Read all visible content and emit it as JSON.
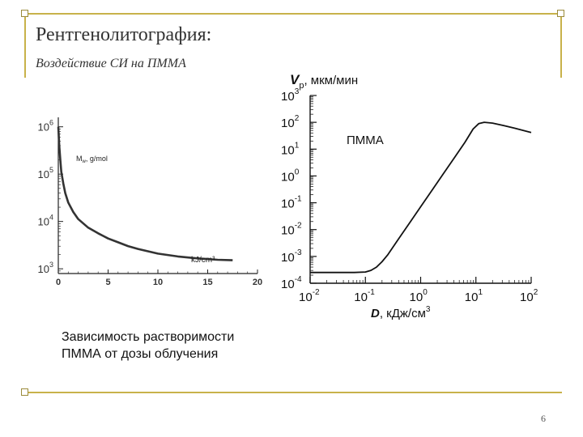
{
  "slide": {
    "title": "Рентгенолитография:",
    "subtitle": "Воздействие СИ на ПММА",
    "caption_line1": "Зависимость растворимости",
    "caption_line2": "ПММА от дозы облучения",
    "page_number": "6"
  },
  "chart_data": [
    {
      "type": "line",
      "title": "",
      "xlabel": "kJ/cm³",
      "ylabel": "M_w, g/mol",
      "ylabel_main": "M",
      "ylabel_sub": "w",
      "ylabel_rest": ", g/mol",
      "y_scale": "log",
      "xlim": [
        0,
        20
      ],
      "ylim_exp": [
        2.9,
        6.2
      ],
      "x_ticks": [
        0,
        5,
        10,
        15,
        20
      ],
      "x_tick_labels": [
        "0",
        "5",
        "10",
        "15",
        "20"
      ],
      "y_ticks_exp": [
        3,
        4,
        5,
        6
      ],
      "y_tick_labels": [
        "3",
        "4",
        "5",
        "6"
      ],
      "y_tick_base": "10",
      "series": [
        {
          "x": [
            0.0,
            0.1,
            0.2,
            0.3,
            0.5,
            0.7,
            1.0,
            1.5,
            2.0,
            3.0,
            4.0,
            5.0,
            6.0,
            7.0,
            8.0,
            10.0,
            12.0,
            14.0,
            16.0,
            17.5
          ],
          "y_exp": [
            6.0,
            5.6,
            5.3,
            5.05,
            4.8,
            4.6,
            4.4,
            4.2,
            4.05,
            3.87,
            3.75,
            3.64,
            3.56,
            3.48,
            3.42,
            3.32,
            3.26,
            3.22,
            3.19,
            3.18
          ]
        }
      ]
    },
    {
      "type": "line",
      "title": "",
      "xlabel": "D, кДж/см³",
      "xlabel_bold": "D",
      "xlabel_rest": ", кДж/см",
      "xlabel_sup": "3",
      "ylabel": "V_p, мкм/мин",
      "ylabel_main": "V",
      "ylabel_sub": "p",
      "ylabel_rest": ", мкм/мин",
      "annotation": "ПММА",
      "x_scale": "log",
      "y_scale": "log",
      "xlim_exp": [
        -2,
        2
      ],
      "ylim_exp": [
        -4,
        3
      ],
      "x_ticks_exp": [
        -2,
        -1,
        0,
        1,
        2
      ],
      "x_tick_labels": [
        "-2",
        "-1",
        "0",
        "1",
        "2"
      ],
      "y_ticks_exp": [
        -4,
        -3,
        -2,
        -1,
        0,
        1,
        2,
        3
      ],
      "y_tick_labels": [
        "-4",
        "-3",
        "-2",
        "-1",
        "0",
        "1",
        "2",
        "3"
      ],
      "tick_base": "10",
      "series": [
        {
          "x_exp": [
            -2.0,
            -1.2,
            -1.0,
            -0.9,
            -0.8,
            -0.7,
            -0.6,
            -0.4,
            -0.2,
            0.0,
            0.2,
            0.4,
            0.6,
            0.8,
            0.95,
            1.05,
            1.15,
            1.3,
            1.5,
            1.7,
            2.0
          ],
          "y_exp": [
            -3.6,
            -3.6,
            -3.58,
            -3.52,
            -3.4,
            -3.2,
            -2.95,
            -2.35,
            -1.75,
            -1.15,
            -0.55,
            0.05,
            0.65,
            1.25,
            1.75,
            1.95,
            2.0,
            1.97,
            1.88,
            1.78,
            1.62
          ]
        }
      ]
    }
  ]
}
